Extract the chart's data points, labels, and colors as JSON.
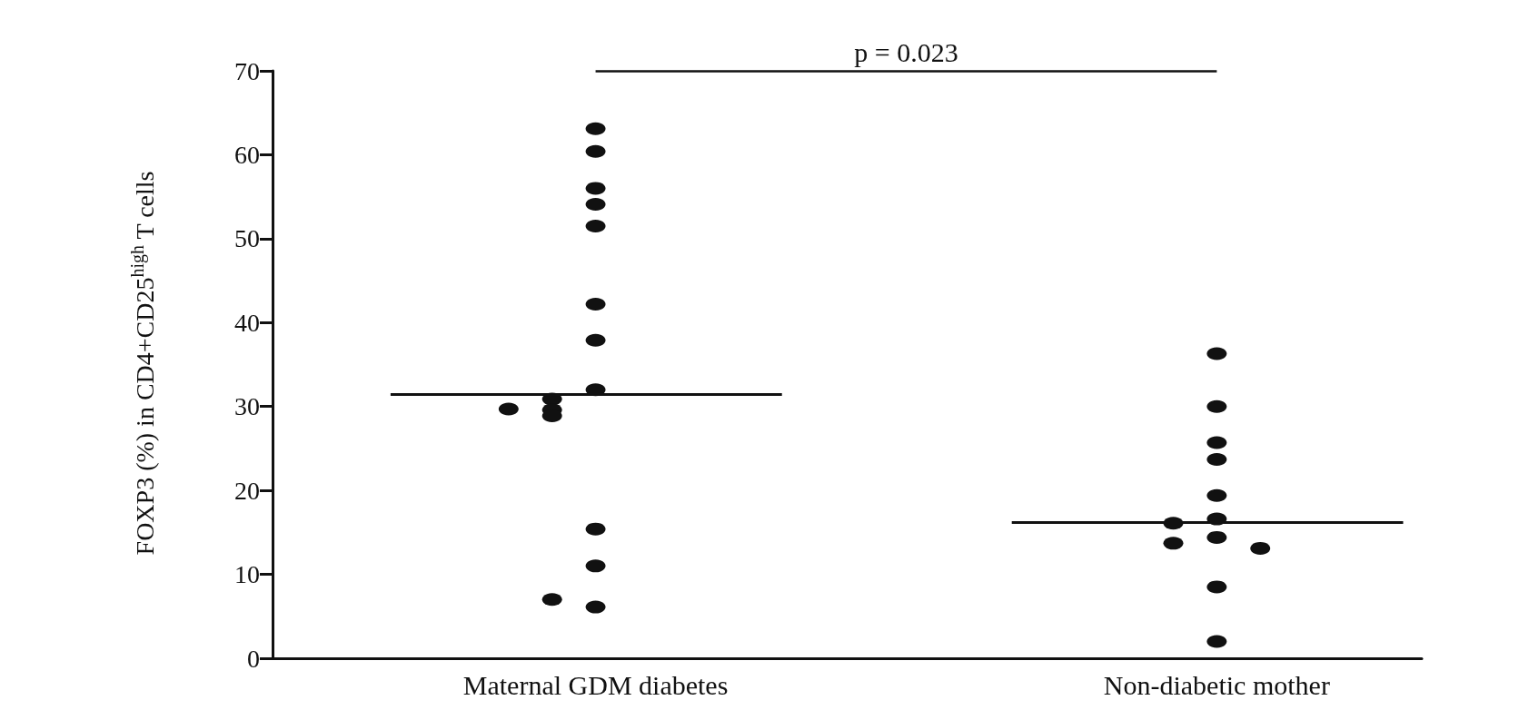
{
  "chart_data": {
    "type": "scatter",
    "categories": [
      "Maternal GDM diabetes",
      "Non-diabetic mother"
    ],
    "ylabel": "FOXP3 (%) in CD4+CD25$^{high}$ T cells",
    "ylim": [
      0,
      70
    ],
    "yticks": [
      0,
      10,
      20,
      30,
      40,
      50,
      60,
      70
    ],
    "grid": false,
    "ref_lines": [
      {
        "axis": "y",
        "value": 31.5,
        "color": "#111111"
      },
      {
        "axis": "y",
        "value": 16.2,
        "color": "#111111"
      }
    ],
    "annotations": [
      "p = 0.023"
    ],
    "series": [
      {
        "color": "#111111",
        "marker": "circle",
        "x": [
          "Maternal GDM diabetes",
          "Maternal GDM diabetes",
          "Maternal GDM diabetes",
          "Maternal GDM diabetes",
          "Maternal GDM diabetes",
          "Maternal GDM diabetes",
          "Maternal GDM diabetes",
          "Maternal GDM diabetes",
          "Maternal GDM diabetes",
          "Maternal GDM diabetes",
          "Maternal GDM diabetes",
          "Maternal GDM diabetes",
          "Maternal GDM diabetes",
          "Maternal GDM diabetes",
          "Maternal GDM diabetes",
          "Maternal GDM diabetes",
          "Non-diabetic mother",
          "Non-diabetic mother",
          "Non-diabetic mother",
          "Non-diabetic mother",
          "Non-diabetic mother",
          "Non-diabetic mother",
          "Non-diabetic mother",
          "Non-diabetic mother",
          "Non-diabetic mother",
          "Non-diabetic mother",
          "Non-diabetic mother",
          "Non-diabetic mother"
        ],
        "values": [
          63.1,
          60.4,
          56.0,
          54.1,
          51.5,
          42.2,
          37.9,
          32.0,
          30.9,
          29.6,
          28.9,
          29.7,
          15.4,
          11.0,
          6.1,
          7.0,
          36.3,
          30.0,
          25.7,
          23.7,
          19.4,
          16.6,
          16.1,
          14.4,
          13.7,
          13.1,
          8.5,
          2.0
        ]
      }
    ]
  }
}
